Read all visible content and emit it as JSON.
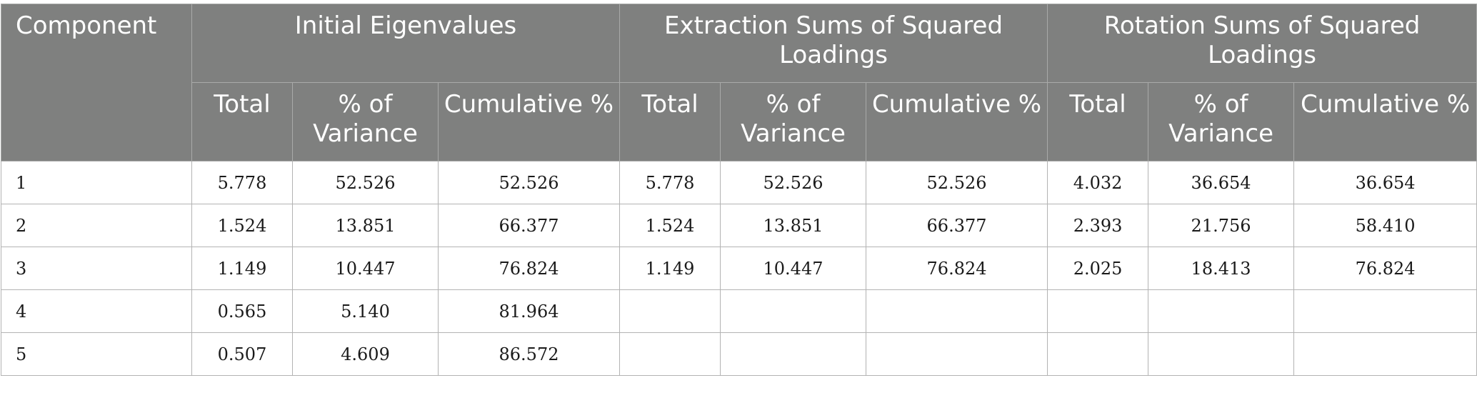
{
  "table": {
    "header": {
      "component": "Component",
      "groups": [
        "Initial Eigenvalues",
        "Extraction Sums of Squared Loadings",
        "Rotation Sums of Squared Loadings"
      ],
      "sub": [
        "Total",
        "% of Variance",
        "Cumulative %",
        "Total",
        "% of Variance",
        "Cumulative %",
        "Total",
        "% of Variance",
        "Cumulative %"
      ]
    },
    "rows": [
      [
        "1",
        "5.778",
        "52.526",
        "52.526",
        "5.778",
        "52.526",
        "52.526",
        "4.032",
        "36.654",
        "36.654"
      ],
      [
        "2",
        "1.524",
        "13.851",
        "66.377",
        "1.524",
        "13.851",
        "66.377",
        "2.393",
        "21.756",
        "58.410"
      ],
      [
        "3",
        "1.149",
        "10.447",
        "76.824",
        "1.149",
        "10.447",
        "76.824",
        "2.025",
        "18.413",
        "76.824"
      ],
      [
        "4",
        "0.565",
        "5.140",
        "81.964",
        "",
        "",
        "",
        "",
        "",
        ""
      ],
      [
        "5",
        "0.507",
        "4.609",
        "86.572",
        "",
        "",
        "",
        "",
        "",
        ""
      ]
    ]
  }
}
